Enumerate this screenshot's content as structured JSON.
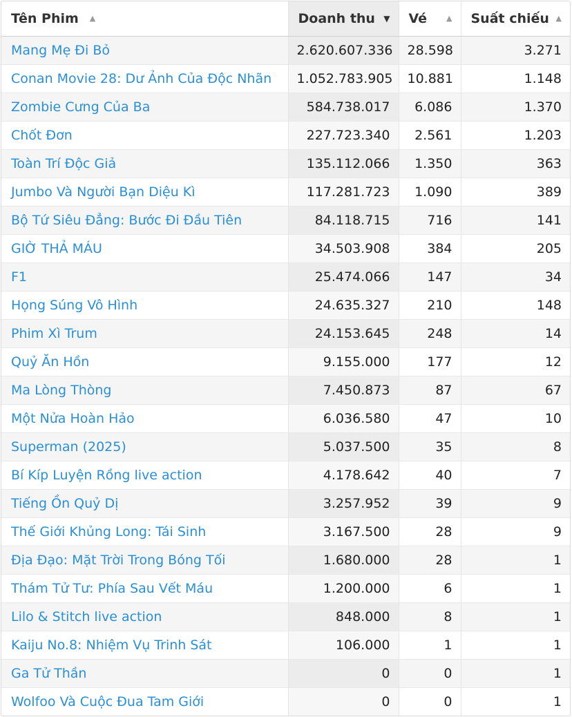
{
  "table": {
    "headers": {
      "title": "Tên Phim",
      "revenue": "Doanh thu",
      "tickets": "Vé",
      "showtimes": "Suất chiếu"
    },
    "sort": {
      "column": "revenue",
      "direction": "descending"
    },
    "rows": [
      {
        "title": "Mang Mẹ Đi Bỏ",
        "revenue": "2.620.607.336",
        "tickets": "28.598",
        "showtimes": "3.271"
      },
      {
        "title": "Conan Movie 28: Dư Ảnh Của Độc Nhãn",
        "revenue": "1.052.783.905",
        "tickets": "10.881",
        "showtimes": "1.148"
      },
      {
        "title": "Zombie Cưng Của Ba",
        "revenue": "584.738.017",
        "tickets": "6.086",
        "showtimes": "1.370"
      },
      {
        "title": "Chốt Đơn",
        "revenue": "227.723.340",
        "tickets": "2.561",
        "showtimes": "1.203"
      },
      {
        "title": "Toàn Trí Độc Giả",
        "revenue": "135.112.066",
        "tickets": "1.350",
        "showtimes": "363"
      },
      {
        "title": "Jumbo Và Người Bạn Diệu Kì",
        "revenue": "117.281.723",
        "tickets": "1.090",
        "showtimes": "389"
      },
      {
        "title": "Bộ Tứ Siêu Đẳng: Bước Đi Đầu Tiên",
        "revenue": "84.118.715",
        "tickets": "716",
        "showtimes": "141"
      },
      {
        "title": "GIỜ THẢ MÁU",
        "revenue": "34.503.908",
        "tickets": "384",
        "showtimes": "205"
      },
      {
        "title": "F1",
        "revenue": "25.474.066",
        "tickets": "147",
        "showtimes": "34"
      },
      {
        "title": "Họng Súng Vô Hình",
        "revenue": "24.635.327",
        "tickets": "210",
        "showtimes": "148"
      },
      {
        "title": "Phim Xì Trum",
        "revenue": "24.153.645",
        "tickets": "248",
        "showtimes": "14"
      },
      {
        "title": "Quỷ Ăn Hồn",
        "revenue": "9.155.000",
        "tickets": "177",
        "showtimes": "12"
      },
      {
        "title": "Ma Lòng Thòng",
        "revenue": "7.450.873",
        "tickets": "87",
        "showtimes": "67"
      },
      {
        "title": "Một Nửa Hoàn Hảo",
        "revenue": "6.036.580",
        "tickets": "47",
        "showtimes": "10"
      },
      {
        "title": "Superman (2025)",
        "revenue": "5.037.500",
        "tickets": "35",
        "showtimes": "8"
      },
      {
        "title": "Bí Kíp Luyện Rồng live action",
        "revenue": "4.178.642",
        "tickets": "40",
        "showtimes": "7"
      },
      {
        "title": "Tiếng Ồn Quỷ Dị",
        "revenue": "3.257.952",
        "tickets": "39",
        "showtimes": "9"
      },
      {
        "title": "Thế Giới Khủng Long: Tái Sinh",
        "revenue": "3.167.500",
        "tickets": "28",
        "showtimes": "9"
      },
      {
        "title": "Địa Đạo: Mặt Trời Trong Bóng Tối",
        "revenue": "1.680.000",
        "tickets": "28",
        "showtimes": "1"
      },
      {
        "title": "Thám Tử Tư: Phía Sau Vết Máu",
        "revenue": "1.200.000",
        "tickets": "6",
        "showtimes": "1"
      },
      {
        "title": "Lilo & Stitch live action",
        "revenue": "848.000",
        "tickets": "8",
        "showtimes": "1"
      },
      {
        "title": "Kaiju No.8: Nhiệm Vụ Trinh Sát",
        "revenue": "106.000",
        "tickets": "1",
        "showtimes": "1"
      },
      {
        "title": "Ga Tử Thần",
        "revenue": "0",
        "tickets": "0",
        "showtimes": "1"
      },
      {
        "title": "Wolfoo Và Cuộc Đua Tam Giới",
        "revenue": "0",
        "tickets": "0",
        "showtimes": "1"
      }
    ]
  }
}
